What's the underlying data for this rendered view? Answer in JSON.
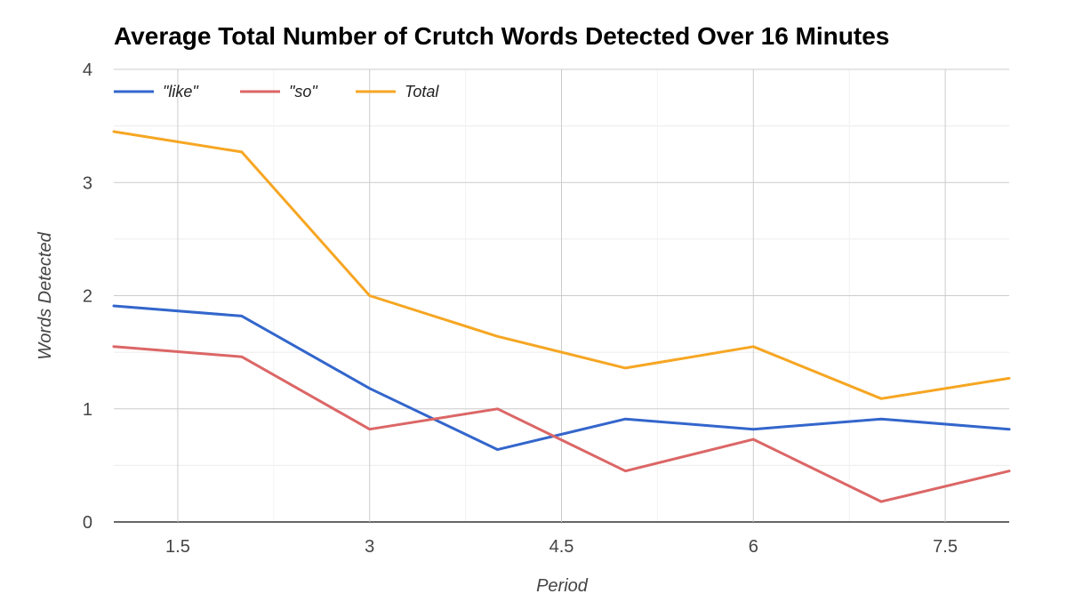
{
  "chart_data": {
    "type": "line",
    "title": "Average Total Number of Crutch Words Detected Over 16 Minutes",
    "xlabel": "Period",
    "ylabel": "Words Detected",
    "xlim": [
      1,
      8
    ],
    "ylim": [
      0,
      4
    ],
    "x_ticks": [
      1.5,
      3,
      4.5,
      6,
      7.5
    ],
    "x_tick_labels": [
      "1.5",
      "3",
      "4.5",
      "6",
      "7.5"
    ],
    "y_ticks": [
      0,
      1,
      2,
      3,
      4
    ],
    "y_tick_labels": [
      "0",
      "1",
      "2",
      "3",
      "4"
    ],
    "grid": true,
    "minor_grid": true,
    "legend_position": "top-left",
    "x": [
      1,
      2,
      3,
      4,
      5,
      6,
      7,
      8
    ],
    "series": [
      {
        "name": "\"like\"",
        "color": "#3366cc",
        "values": [
          1.91,
          1.82,
          1.18,
          0.64,
          0.91,
          0.82,
          0.91,
          0.82
        ]
      },
      {
        "name": "\"so\"",
        "color": "#dc6666",
        "values": [
          1.55,
          1.46,
          0.82,
          1.0,
          0.45,
          0.73,
          0.18,
          0.45
        ]
      },
      {
        "name": "Total",
        "color": "#f6a623",
        "values": [
          3.45,
          3.27,
          2.0,
          1.64,
          1.36,
          1.55,
          1.09,
          1.27
        ]
      }
    ]
  }
}
